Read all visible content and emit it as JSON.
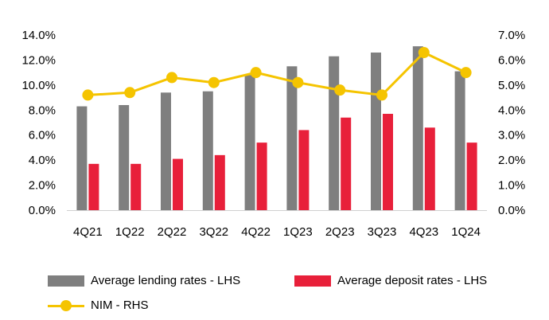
{
  "chart_data": {
    "type": "bar+line",
    "categories": [
      "4Q21",
      "1Q22",
      "2Q22",
      "3Q22",
      "4Q22",
      "1Q23",
      "2Q23",
      "3Q23",
      "4Q23",
      "1Q24"
    ],
    "series": [
      {
        "name": "Average lending rates - LHS",
        "type": "bar",
        "axis": "left",
        "color": "#7f7f7f",
        "values": [
          8.3,
          8.4,
          9.4,
          9.5,
          10.8,
          11.5,
          12.3,
          12.6,
          13.1,
          11.1
        ]
      },
      {
        "name": "Average deposit rates - LHS",
        "type": "bar",
        "axis": "left",
        "color": "#e8203a",
        "values": [
          3.7,
          3.7,
          4.1,
          4.4,
          5.4,
          6.4,
          7.4,
          7.7,
          6.6,
          5.4
        ]
      },
      {
        "name": "NIM - RHS",
        "type": "line",
        "axis": "right",
        "color": "#f5c400",
        "values": [
          4.6,
          4.7,
          5.3,
          5.1,
          5.5,
          5.1,
          4.8,
          4.6,
          6.3,
          5.5
        ]
      }
    ],
    "left_axis": {
      "min": 0,
      "max": 14,
      "step": 2,
      "tick_labels": [
        "0.0%",
        "2.0%",
        "4.0%",
        "6.0%",
        "8.0%",
        "10.0%",
        "12.0%",
        "14.0%"
      ]
    },
    "right_axis": {
      "min": 0,
      "max": 7,
      "step": 1,
      "tick_labels": [
        "0.0%",
        "1.0%",
        "2.0%",
        "3.0%",
        "4.0%",
        "5.0%",
        "6.0%",
        "7.0%"
      ]
    },
    "legend": [
      "Average lending rates - LHS",
      "Average deposit rates - LHS",
      "NIM - RHS"
    ],
    "legend_position": "bottom",
    "grid": false,
    "title": ""
  }
}
